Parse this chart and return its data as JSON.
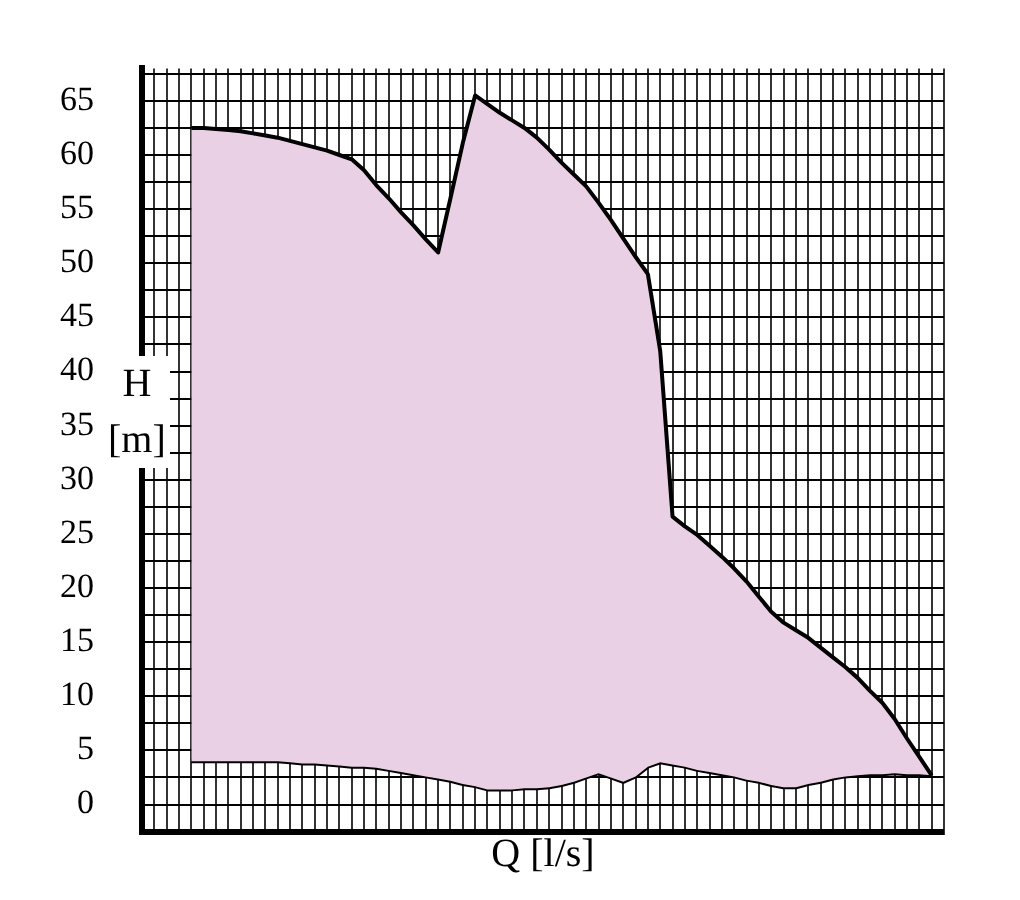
{
  "chart_data": {
    "type": "area",
    "xlabel": "Q [l/s]",
    "ylabel": "H [m]",
    "categories": [
      null,
      null,
      null,
      null,
      null,
      null,
      null,
      null,
      null,
      null,
      null,
      null,
      null,
      null,
      null,
      null,
      null,
      null,
      null,
      null,
      null,
      null,
      null,
      null,
      null,
      null,
      null,
      null,
      null,
      null,
      null,
      null,
      null,
      null,
      null,
      null,
      null,
      null,
      null,
      null,
      null,
      null,
      null,
      null,
      null,
      null,
      null,
      null,
      null,
      null,
      null,
      null,
      null,
      null,
      null,
      null,
      null,
      null,
      null,
      null,
      null,
      null,
      null,
      null,
      null,
      null
    ],
    "series": [
      {
        "color": "#ead0e4",
        "values": [
          null,
          null,
          null,
          null,
          62.5,
          62.5,
          62.4,
          62.3,
          62.2,
          62,
          61.8,
          61.6,
          61.3,
          61,
          60.7,
          60.4,
          60,
          59.6,
          58.6,
          57.2,
          56,
          54.7,
          53.5,
          52.2,
          51,
          56,
          61.1,
          65.5,
          64.7,
          63.9,
          63.2,
          62.5,
          61.6,
          60.5,
          59.3,
          58.2,
          57.1,
          55.6,
          54,
          52.3,
          50.6,
          49,
          41.9,
          26.6,
          25.7,
          24.9,
          23.9,
          22.9,
          21.8,
          20.6,
          19.2,
          17.8,
          16.8,
          16.1,
          15.4,
          14.5,
          13.6,
          12.7,
          11.7,
          10.5,
          9.4,
          7.9,
          6.1,
          4.4,
          2.7,
          null
        ]
      },
      {
        "type": "line",
        "color": "#000000",
        "values": [
          null,
          null,
          null,
          null,
          4,
          4,
          4,
          4,
          4,
          4,
          4,
          4,
          3.9,
          3.8,
          3.8,
          3.7,
          3.6,
          3.5,
          3.5,
          3.4,
          3.2,
          3,
          2.8,
          2.6,
          2.4,
          2.2,
          1.9,
          1.7,
          1.4,
          1.4,
          1.4,
          1.5,
          1.5,
          1.6,
          1.8,
          2.1,
          2.5,
          2.9,
          2.5,
          2.1,
          2.6,
          3.5,
          3.9,
          3.7,
          3.5,
          3.2,
          3,
          2.8,
          2.6,
          2.3,
          2.1,
          1.8,
          1.6,
          1.6,
          1.9,
          2.1,
          2.4,
          2.6,
          2.7,
          2.8,
          2.8,
          2.9,
          2.8,
          2.8,
          2.7,
          null
        ]
      }
    ],
    "ylim": [
      -2.5,
      68
    ],
    "yticks": [
      0,
      {
        "value": 2.5,
        "label": null
      },
      5,
      {
        "value": 7.5,
        "label": null
      },
      10,
      {
        "value": 12.5,
        "label": null
      },
      15,
      {
        "value": 17.5,
        "label": null
      },
      20,
      {
        "value": 22.5,
        "label": null
      },
      25,
      {
        "value": 27.5,
        "label": null
      },
      30,
      {
        "value": 32.5,
        "label": null
      },
      35,
      {
        "value": 37.5,
        "label": null
      },
      40,
      {
        "value": 42.5,
        "label": null
      },
      45,
      {
        "value": 47.5,
        "label": null
      },
      50,
      {
        "value": 52.5,
        "label": null
      },
      55,
      {
        "value": 57.5,
        "label": null
      },
      60,
      {
        "value": 62.5,
        "label": null
      },
      65,
      {
        "value": 67.5,
        "label": null
      }
    ],
    "grid": true,
    "legend": false,
    "tick_labels": "y",
    "marker": "none",
    "line_style": "solid"
  }
}
